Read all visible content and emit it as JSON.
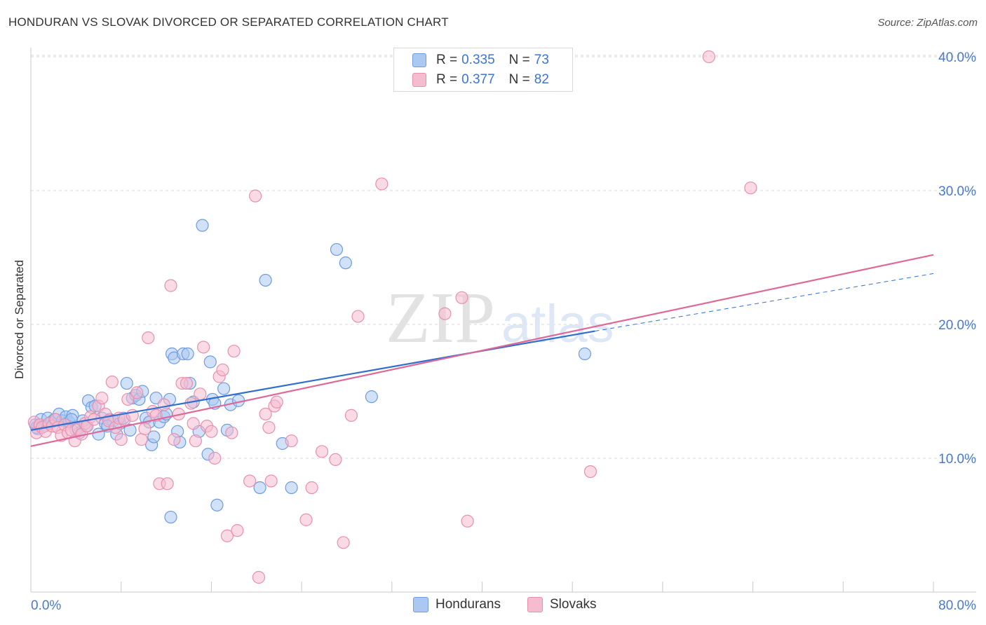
{
  "header": {
    "title": "HONDURAN VS SLOVAK DIVORCED OR SEPARATED CORRELATION CHART",
    "source": "Source: ZipAtlas.com"
  },
  "legend_stats": [
    {
      "r_label": "R = ",
      "r_value": "0.335",
      "n_label": "N = ",
      "n_value": "73"
    },
    {
      "r_label": "R = ",
      "r_value": "0.377",
      "n_label": "N = ",
      "n_value": "82"
    }
  ],
  "watermark": {
    "zip": "ZIP",
    "atlas": "atlas"
  },
  "colors": {
    "blue_fill": "#aac8f2",
    "blue_stroke": "#6f9be0",
    "blue_line": "#2f6fce",
    "pink_fill": "#f5bccf",
    "pink_stroke": "#e890ad",
    "pink_line": "#e06896",
    "grid": "#d9d9d9",
    "tick_text": "#4a79c9"
  },
  "chart_data": {
    "type": "scatter",
    "title": "HONDURAN VS SLOVAK DIVORCED OR SEPARATED CORRELATION CHART",
    "xlabel": "",
    "ylabel": "Divorced or Separated",
    "xlim": [
      0,
      80
    ],
    "ylim": [
      0,
      42
    ],
    "x_tick_labels": [
      "0.0%",
      "80.0%"
    ],
    "y_ticks": [
      10,
      20,
      30,
      40
    ],
    "y_tick_labels": [
      "10.0%",
      "20.0%",
      "30.0%",
      "40.0%"
    ],
    "grid": true,
    "legend_position": "bottom-center",
    "series": [
      {
        "name": "Hondurans",
        "color": "#aac8f2",
        "trend": {
          "x0": 0,
          "y0": 12.1,
          "x1": 50,
          "y1": 19.5,
          "dashed_to_x": 80,
          "dashed_to_y": 23.8
        },
        "points": [
          [
            0.4,
            12.5
          ],
          [
            0.6,
            12.2
          ],
          [
            0.9,
            12.9
          ],
          [
            1.2,
            12.4
          ],
          [
            1.5,
            13.0
          ],
          [
            1.8,
            12.7
          ],
          [
            2.1,
            12.9
          ],
          [
            2.5,
            13.3
          ],
          [
            2.8,
            12.8
          ],
          [
            3.1,
            13.1
          ],
          [
            3.4,
            12.7
          ],
          [
            3.7,
            13.2
          ],
          [
            4.0,
            12.1
          ],
          [
            4.3,
            11.9
          ],
          [
            4.6,
            12.8
          ],
          [
            4.9,
            12.4
          ],
          [
            5.1,
            14.3
          ],
          [
            5.4,
            13.8
          ],
          [
            5.7,
            13.9
          ],
          [
            6.0,
            11.8
          ],
          [
            6.3,
            13.0
          ],
          [
            6.6,
            12.6
          ],
          [
            7.0,
            12.9
          ],
          [
            7.3,
            12.8
          ],
          [
            7.6,
            11.8
          ],
          [
            7.9,
            12.6
          ],
          [
            8.2,
            13.0
          ],
          [
            8.5,
            15.6
          ],
          [
            8.8,
            12.1
          ],
          [
            9.0,
            14.5
          ],
          [
            9.3,
            14.7
          ],
          [
            9.6,
            14.4
          ],
          [
            9.9,
            15.0
          ],
          [
            10.2,
            13.0
          ],
          [
            10.5,
            12.7
          ],
          [
            10.7,
            11.0
          ],
          [
            10.9,
            11.6
          ],
          [
            11.1,
            14.5
          ],
          [
            11.4,
            12.7
          ],
          [
            11.8,
            13.1
          ],
          [
            12.0,
            13.3
          ],
          [
            12.3,
            14.4
          ],
          [
            12.4,
            5.6
          ],
          [
            12.5,
            17.8
          ],
          [
            12.7,
            17.5
          ],
          [
            13.0,
            12.0
          ],
          [
            13.2,
            11.2
          ],
          [
            13.5,
            17.8
          ],
          [
            13.9,
            17.8
          ],
          [
            14.1,
            15.6
          ],
          [
            14.4,
            14.2
          ],
          [
            14.9,
            12.0
          ],
          [
            15.2,
            27.4
          ],
          [
            15.7,
            10.3
          ],
          [
            15.9,
            17.2
          ],
          [
            16.1,
            14.4
          ],
          [
            16.3,
            14.1
          ],
          [
            16.5,
            6.5
          ],
          [
            17.1,
            15.2
          ],
          [
            17.4,
            12.1
          ],
          [
            17.7,
            14.0
          ],
          [
            18.4,
            14.3
          ],
          [
            20.3,
            7.8
          ],
          [
            20.8,
            23.3
          ],
          [
            22.3,
            11.1
          ],
          [
            23.1,
            7.8
          ],
          [
            27.1,
            25.6
          ],
          [
            27.9,
            24.6
          ],
          [
            30.2,
            14.6
          ],
          [
            49.1,
            17.8
          ],
          [
            0.5,
            12.3
          ],
          [
            3.6,
            12.9
          ],
          [
            6.8,
            12.4
          ]
        ]
      },
      {
        "name": "Slovaks",
        "color": "#f5bccf",
        "trend": {
          "x0": 0,
          "y0": 10.9,
          "x1": 80,
          "y1": 25.2
        },
        "points": [
          [
            0.3,
            12.7
          ],
          [
            0.5,
            11.9
          ],
          [
            0.8,
            12.5
          ],
          [
            1.0,
            12.3
          ],
          [
            1.3,
            12.0
          ],
          [
            1.6,
            12.6
          ],
          [
            1.9,
            12.4
          ],
          [
            2.2,
            12.9
          ],
          [
            2.4,
            12.3
          ],
          [
            2.7,
            11.7
          ],
          [
            3.0,
            12.5
          ],
          [
            3.3,
            11.9
          ],
          [
            3.6,
            12.1
          ],
          [
            3.9,
            11.3
          ],
          [
            4.2,
            12.2
          ],
          [
            4.5,
            11.8
          ],
          [
            4.8,
            12.6
          ],
          [
            5.0,
            12.4
          ],
          [
            5.3,
            13.1
          ],
          [
            5.6,
            12.9
          ],
          [
            6.0,
            13.9
          ],
          [
            6.3,
            14.5
          ],
          [
            6.6,
            13.3
          ],
          [
            6.9,
            12.8
          ],
          [
            7.2,
            15.7
          ],
          [
            7.5,
            12.3
          ],
          [
            7.8,
            13.0
          ],
          [
            8.0,
            11.4
          ],
          [
            8.3,
            12.9
          ],
          [
            8.6,
            14.4
          ],
          [
            9.0,
            13.2
          ],
          [
            9.4,
            14.9
          ],
          [
            9.8,
            11.4
          ],
          [
            10.1,
            12.2
          ],
          [
            10.4,
            19.0
          ],
          [
            10.8,
            13.5
          ],
          [
            11.1,
            13.2
          ],
          [
            11.4,
            8.1
          ],
          [
            11.8,
            14.0
          ],
          [
            12.1,
            8.1
          ],
          [
            12.4,
            22.9
          ],
          [
            12.7,
            11.4
          ],
          [
            13.1,
            13.3
          ],
          [
            13.4,
            15.6
          ],
          [
            13.8,
            15.6
          ],
          [
            14.2,
            14.1
          ],
          [
            14.6,
            11.3
          ],
          [
            15.0,
            14.8
          ],
          [
            15.3,
            18.3
          ],
          [
            15.6,
            12.4
          ],
          [
            16.0,
            12.0
          ],
          [
            16.3,
            10.0
          ],
          [
            16.7,
            16.1
          ],
          [
            17.0,
            16.6
          ],
          [
            17.4,
            4.2
          ],
          [
            17.8,
            11.9
          ],
          [
            18.0,
            18.0
          ],
          [
            18.3,
            4.6
          ],
          [
            19.4,
            8.3
          ],
          [
            19.9,
            29.6
          ],
          [
            20.2,
            1.1
          ],
          [
            20.8,
            13.3
          ],
          [
            21.3,
            8.3
          ],
          [
            21.1,
            12.3
          ],
          [
            21.6,
            13.9
          ],
          [
            21.8,
            14.2
          ],
          [
            23.1,
            11.3
          ],
          [
            24.4,
            5.4
          ],
          [
            24.9,
            7.8
          ],
          [
            25.8,
            10.5
          ],
          [
            27.0,
            9.9
          ],
          [
            27.7,
            3.7
          ],
          [
            28.4,
            13.2
          ],
          [
            29.0,
            20.6
          ],
          [
            31.1,
            30.5
          ],
          [
            36.7,
            20.8
          ],
          [
            38.2,
            22.0
          ],
          [
            38.7,
            5.3
          ],
          [
            49.6,
            9.0
          ],
          [
            60.1,
            40.0
          ],
          [
            63.8,
            30.2
          ],
          [
            14.4,
            12.6
          ]
        ]
      }
    ]
  }
}
